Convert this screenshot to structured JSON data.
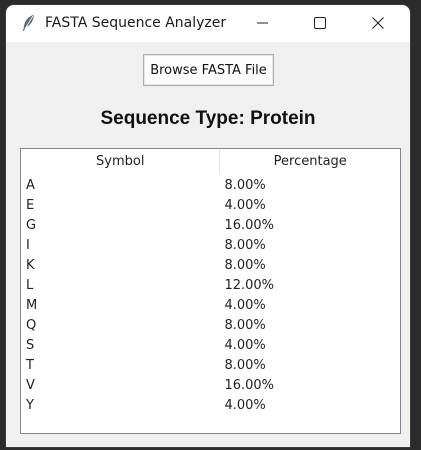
{
  "window": {
    "title": "FASTA Sequence Analyzer",
    "icon": "feather-icon",
    "controls": [
      "minimize-icon",
      "maximize-icon",
      "close-icon"
    ]
  },
  "toolbar": {
    "browse_label": "Browse FASTA File"
  },
  "sequence": {
    "type_label": "Sequence Type: Protein"
  },
  "table": {
    "columns": [
      "Symbol",
      "Percentage"
    ],
    "rows": [
      {
        "symbol": "A",
        "percentage": "8.00%"
      },
      {
        "symbol": "E",
        "percentage": "4.00%"
      },
      {
        "symbol": "G",
        "percentage": "16.00%"
      },
      {
        "symbol": "I",
        "percentage": "8.00%"
      },
      {
        "symbol": "K",
        "percentage": "8.00%"
      },
      {
        "symbol": "L",
        "percentage": "12.00%"
      },
      {
        "symbol": "M",
        "percentage": "4.00%"
      },
      {
        "symbol": "Q",
        "percentage": "8.00%"
      },
      {
        "symbol": "S",
        "percentage": "4.00%"
      },
      {
        "symbol": "T",
        "percentage": "8.00%"
      },
      {
        "symbol": "V",
        "percentage": "16.00%"
      },
      {
        "symbol": "Y",
        "percentage": "4.00%"
      }
    ]
  }
}
